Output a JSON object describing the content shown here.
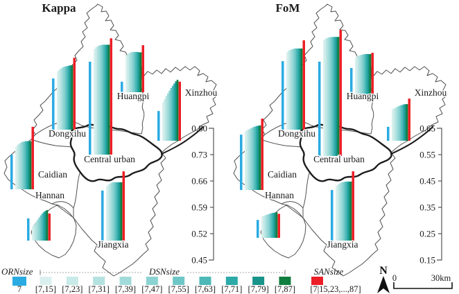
{
  "chart_data": [
    {
      "type": "bar",
      "title": "Kappa",
      "ylim": [
        0.45,
        0.8
      ],
      "yticks": [
        "0.80",
        "0.73",
        "0.66",
        "0.59",
        "0.52",
        "0.45"
      ],
      "legend_position": "bottom",
      "districts": [
        {
          "name": "Dongxihu",
          "ORNsize": 0.586,
          "DSNsize": [
            0.605,
            0.609,
            0.612,
            0.615,
            0.617,
            0.618,
            0.619,
            0.62,
            0.621,
            0.621
          ],
          "SANsize": 0.641
        },
        {
          "name": "Central urban",
          "ORNsize": 0.697,
          "DSNsize": [
            0.73,
            0.735,
            0.738,
            0.74,
            0.741,
            0.742,
            0.742,
            0.742,
            0.742,
            0.742
          ],
          "SANsize": 0.759
        },
        {
          "name": "Huangpi",
          "ORNsize": 0.478,
          "DSNsize": [
            0.548,
            0.552,
            0.554,
            0.556,
            0.557,
            0.557,
            0.557,
            0.557,
            0.556,
            0.556
          ],
          "SANsize": 0.575
        },
        {
          "name": "Xinzhou",
          "ORNsize": 0.529,
          "DSNsize": [
            0.553,
            0.561,
            0.569,
            0.576,
            0.583,
            0.59,
            0.596,
            0.602,
            0.608,
            0.612
          ],
          "SANsize": 0.607
        },
        {
          "name": "Caidian",
          "ORNsize": 0.542,
          "DSNsize": [
            0.563,
            0.568,
            0.571,
            0.574,
            0.576,
            0.577,
            0.578,
            0.578,
            0.578,
            0.578
          ],
          "SANsize": 0.616
        },
        {
          "name": "Hannan",
          "ORNsize": 0.509,
          "DSNsize": [
            0.487,
            0.493,
            0.499,
            0.505,
            0.511,
            0.517,
            0.522,
            0.526,
            0.529,
            0.531
          ],
          "SANsize": 0.522
        },
        {
          "name": "Jiangxia",
          "ORNsize": 0.583,
          "DSNsize": [
            0.595,
            0.599,
            0.602,
            0.604,
            0.605,
            0.605,
            0.605,
            0.605,
            0.605,
            0.605
          ],
          "SANsize": 0.634
        }
      ]
    },
    {
      "type": "bar",
      "title": "FoM",
      "ylim": [
        0.15,
        0.65
      ],
      "yticks": [
        "0.65",
        "0.55",
        "0.45",
        "0.35",
        "0.25",
        "0.15"
      ],
      "legend_position": "bottom",
      "districts": [
        {
          "name": "Dongxihu",
          "ORNsize": 0.41,
          "DSNsize": [
            0.445,
            0.45,
            0.453,
            0.455,
            0.457,
            0.458,
            0.458,
            0.458,
            0.458,
            0.458
          ],
          "SANsize": 0.489
        },
        {
          "name": "Central urban",
          "ORNsize": 0.508,
          "DSNsize": [
            0.59,
            0.595,
            0.598,
            0.6,
            0.601,
            0.602,
            0.602,
            0.602,
            0.602,
            0.602
          ],
          "SANsize": 0.629
        },
        {
          "name": "Huangpi",
          "ORNsize": 0.255,
          "DSNsize": [
            0.295,
            0.299,
            0.302,
            0.304,
            0.306,
            0.307,
            0.308,
            0.308,
            0.308,
            0.308
          ],
          "SANsize": 0.313
        },
        {
          "name": "Xinzhou",
          "ORNsize": 0.203,
          "DSNsize": [
            0.27,
            0.273,
            0.276,
            0.279,
            0.282,
            0.284,
            0.286,
            0.288,
            0.289,
            0.289
          ],
          "SANsize": 0.31
        },
        {
          "name": "Caidian",
          "ORNsize": 0.36,
          "DSNsize": [
            0.374,
            0.377,
            0.38,
            0.383,
            0.386,
            0.389,
            0.391,
            0.393,
            0.394,
            0.395
          ],
          "SANsize": 0.421
        },
        {
          "name": "Hannan",
          "ORNsize": 0.218,
          "DSNsize": [
            0.232,
            0.234,
            0.236,
            0.238,
            0.24,
            0.242,
            0.244,
            0.245,
            0.246,
            0.247
          ],
          "SANsize": 0.241
        },
        {
          "name": "Jiangxia",
          "ORNsize": 0.342,
          "DSNsize": [
            0.358,
            0.363,
            0.367,
            0.37,
            0.372,
            0.373,
            0.374,
            0.374,
            0.374,
            0.374
          ],
          "SANsize": 0.413
        }
      ]
    }
  ],
  "legend": {
    "orn": {
      "label": "ORNsize",
      "value": "7",
      "color": "#2aabe2"
    },
    "dsn": {
      "label": "DSNsize",
      "bins": [
        "[7,15]",
        "[7,23]",
        "[7,31]",
        "[7,39]",
        "[7,47]",
        "[7,55]",
        "[7,63]",
        "[7,71]",
        "[7,79]",
        "[7,87]"
      ],
      "colors": [
        "#daf0ee",
        "#c8eae8",
        "#b4e2e0",
        "#a0dbda",
        "#8ad3d2",
        "#6ec7c6",
        "#4cb9b8",
        "#2baaa8",
        "#18948a",
        "#0f7e3e"
      ]
    },
    "san": {
      "label": "SANsize",
      "value": "[7|15,23,...,87]",
      "color": "#ec1f26"
    }
  },
  "map": {
    "district_labels": [
      "Dongxihu",
      "Central urban",
      "Huangpi",
      "Xinzhou",
      "Caidian",
      "Hannan",
      "Jiangxia"
    ]
  },
  "compass": {
    "label": "N"
  },
  "scalebar": {
    "start": "0",
    "end": "30km"
  }
}
